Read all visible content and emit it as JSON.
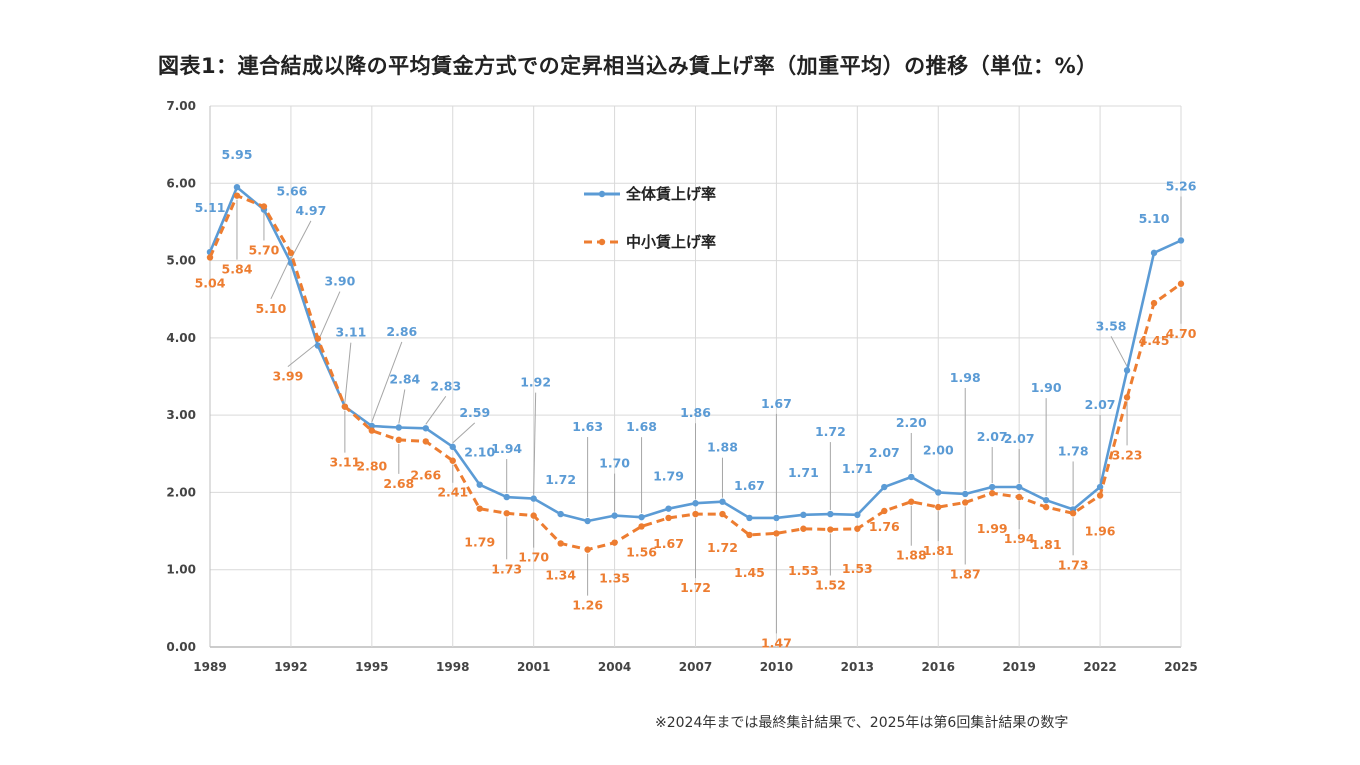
{
  "chart_data": {
    "type": "line",
    "title": "図表1：連合結成以降の平均賃金方式での定昇相当込み賃上げ率（加重平均）の推移（単位：%）",
    "xlabel": "",
    "ylabel": "",
    "ylim": [
      0,
      7
    ],
    "yticks": [
      "0.00",
      "1.00",
      "2.00",
      "3.00",
      "4.00",
      "5.00",
      "6.00",
      "7.00"
    ],
    "xticks": [
      "1989",
      "1992",
      "1995",
      "1998",
      "2001",
      "2004",
      "2007",
      "2010",
      "2013",
      "2016",
      "2019",
      "2022",
      "2025"
    ],
    "x": [
      1989,
      1990,
      1991,
      1992,
      1993,
      1994,
      1995,
      1996,
      1997,
      1998,
      1999,
      2000,
      2001,
      2002,
      2003,
      2004,
      2005,
      2006,
      2007,
      2008,
      2009,
      2010,
      2011,
      2012,
      2013,
      2014,
      2015,
      2016,
      2017,
      2018,
      2019,
      2020,
      2021,
      2022,
      2023,
      2024,
      2025
    ],
    "series": [
      {
        "name": "全体賃上げ率",
        "color": "#5b9bd5",
        "style": "solid",
        "values": [
          5.11,
          5.95,
          5.66,
          4.97,
          3.9,
          3.11,
          2.86,
          2.84,
          2.83,
          2.59,
          2.1,
          1.94,
          1.92,
          1.72,
          1.63,
          1.7,
          1.68,
          1.79,
          1.86,
          1.88,
          1.67,
          1.67,
          1.71,
          1.72,
          1.71,
          2.07,
          2.2,
          2.0,
          1.98,
          2.07,
          2.07,
          1.9,
          1.78,
          2.07,
          3.58,
          5.1,
          5.26
        ],
        "labels": [
          "5.11",
          "5.95",
          "5.66",
          "4.97",
          "3.90",
          "3.11",
          "2.86",
          "2.84",
          "2.83",
          "2.59",
          "2.10",
          "1.94",
          "1.92",
          "1.72",
          "1.63",
          "1.70",
          "1.68",
          "1.79",
          "1.86",
          "1.88",
          "1.67",
          "1.67",
          "1.71",
          "1.72",
          "1.71",
          "2.07",
          "2.20",
          "2.00",
          "1.98",
          "2.07",
          "2.07",
          "1.90",
          "1.78",
          "2.07",
          "3.58",
          "5.10",
          "5.26"
        ]
      },
      {
        "name": "中小賃上げ率",
        "color": "#ed7d31",
        "style": "dashed",
        "values": [
          5.04,
          5.84,
          5.7,
          5.1,
          3.99,
          3.11,
          2.8,
          2.68,
          2.66,
          2.41,
          1.79,
          1.73,
          1.7,
          1.34,
          1.26,
          1.35,
          1.56,
          1.67,
          1.72,
          1.72,
          1.45,
          1.47,
          1.53,
          1.52,
          1.53,
          1.76,
          1.88,
          1.81,
          1.87,
          1.99,
          1.94,
          1.81,
          1.73,
          1.96,
          3.23,
          4.45,
          4.7
        ],
        "labels": [
          "5.04",
          "5.84",
          "5.70",
          "5.10",
          "3.99",
          "3.11",
          "2.80",
          "2.68",
          "2.66",
          "2.41",
          "1.79",
          "1.73",
          "1.70",
          "1.34",
          "1.26",
          "1.35",
          "1.56",
          "1.67",
          "1.72",
          "1.72",
          "1.45",
          "1.47",
          "1.53",
          "1.52",
          "1.53",
          "1.76",
          "1.88",
          "1.81",
          "1.87",
          "1.99",
          "1.94",
          "1.81",
          "1.73",
          "1.96",
          "3.23",
          "4.45",
          "4.70"
        ]
      }
    ],
    "legend": [
      "全体賃上げ率",
      "中小賃上げ率"
    ],
    "legend_position": "top-center",
    "grid": true
  },
  "footnote": "※2024年までは最終集計結果で、2025年は第6回集計結果の数字"
}
